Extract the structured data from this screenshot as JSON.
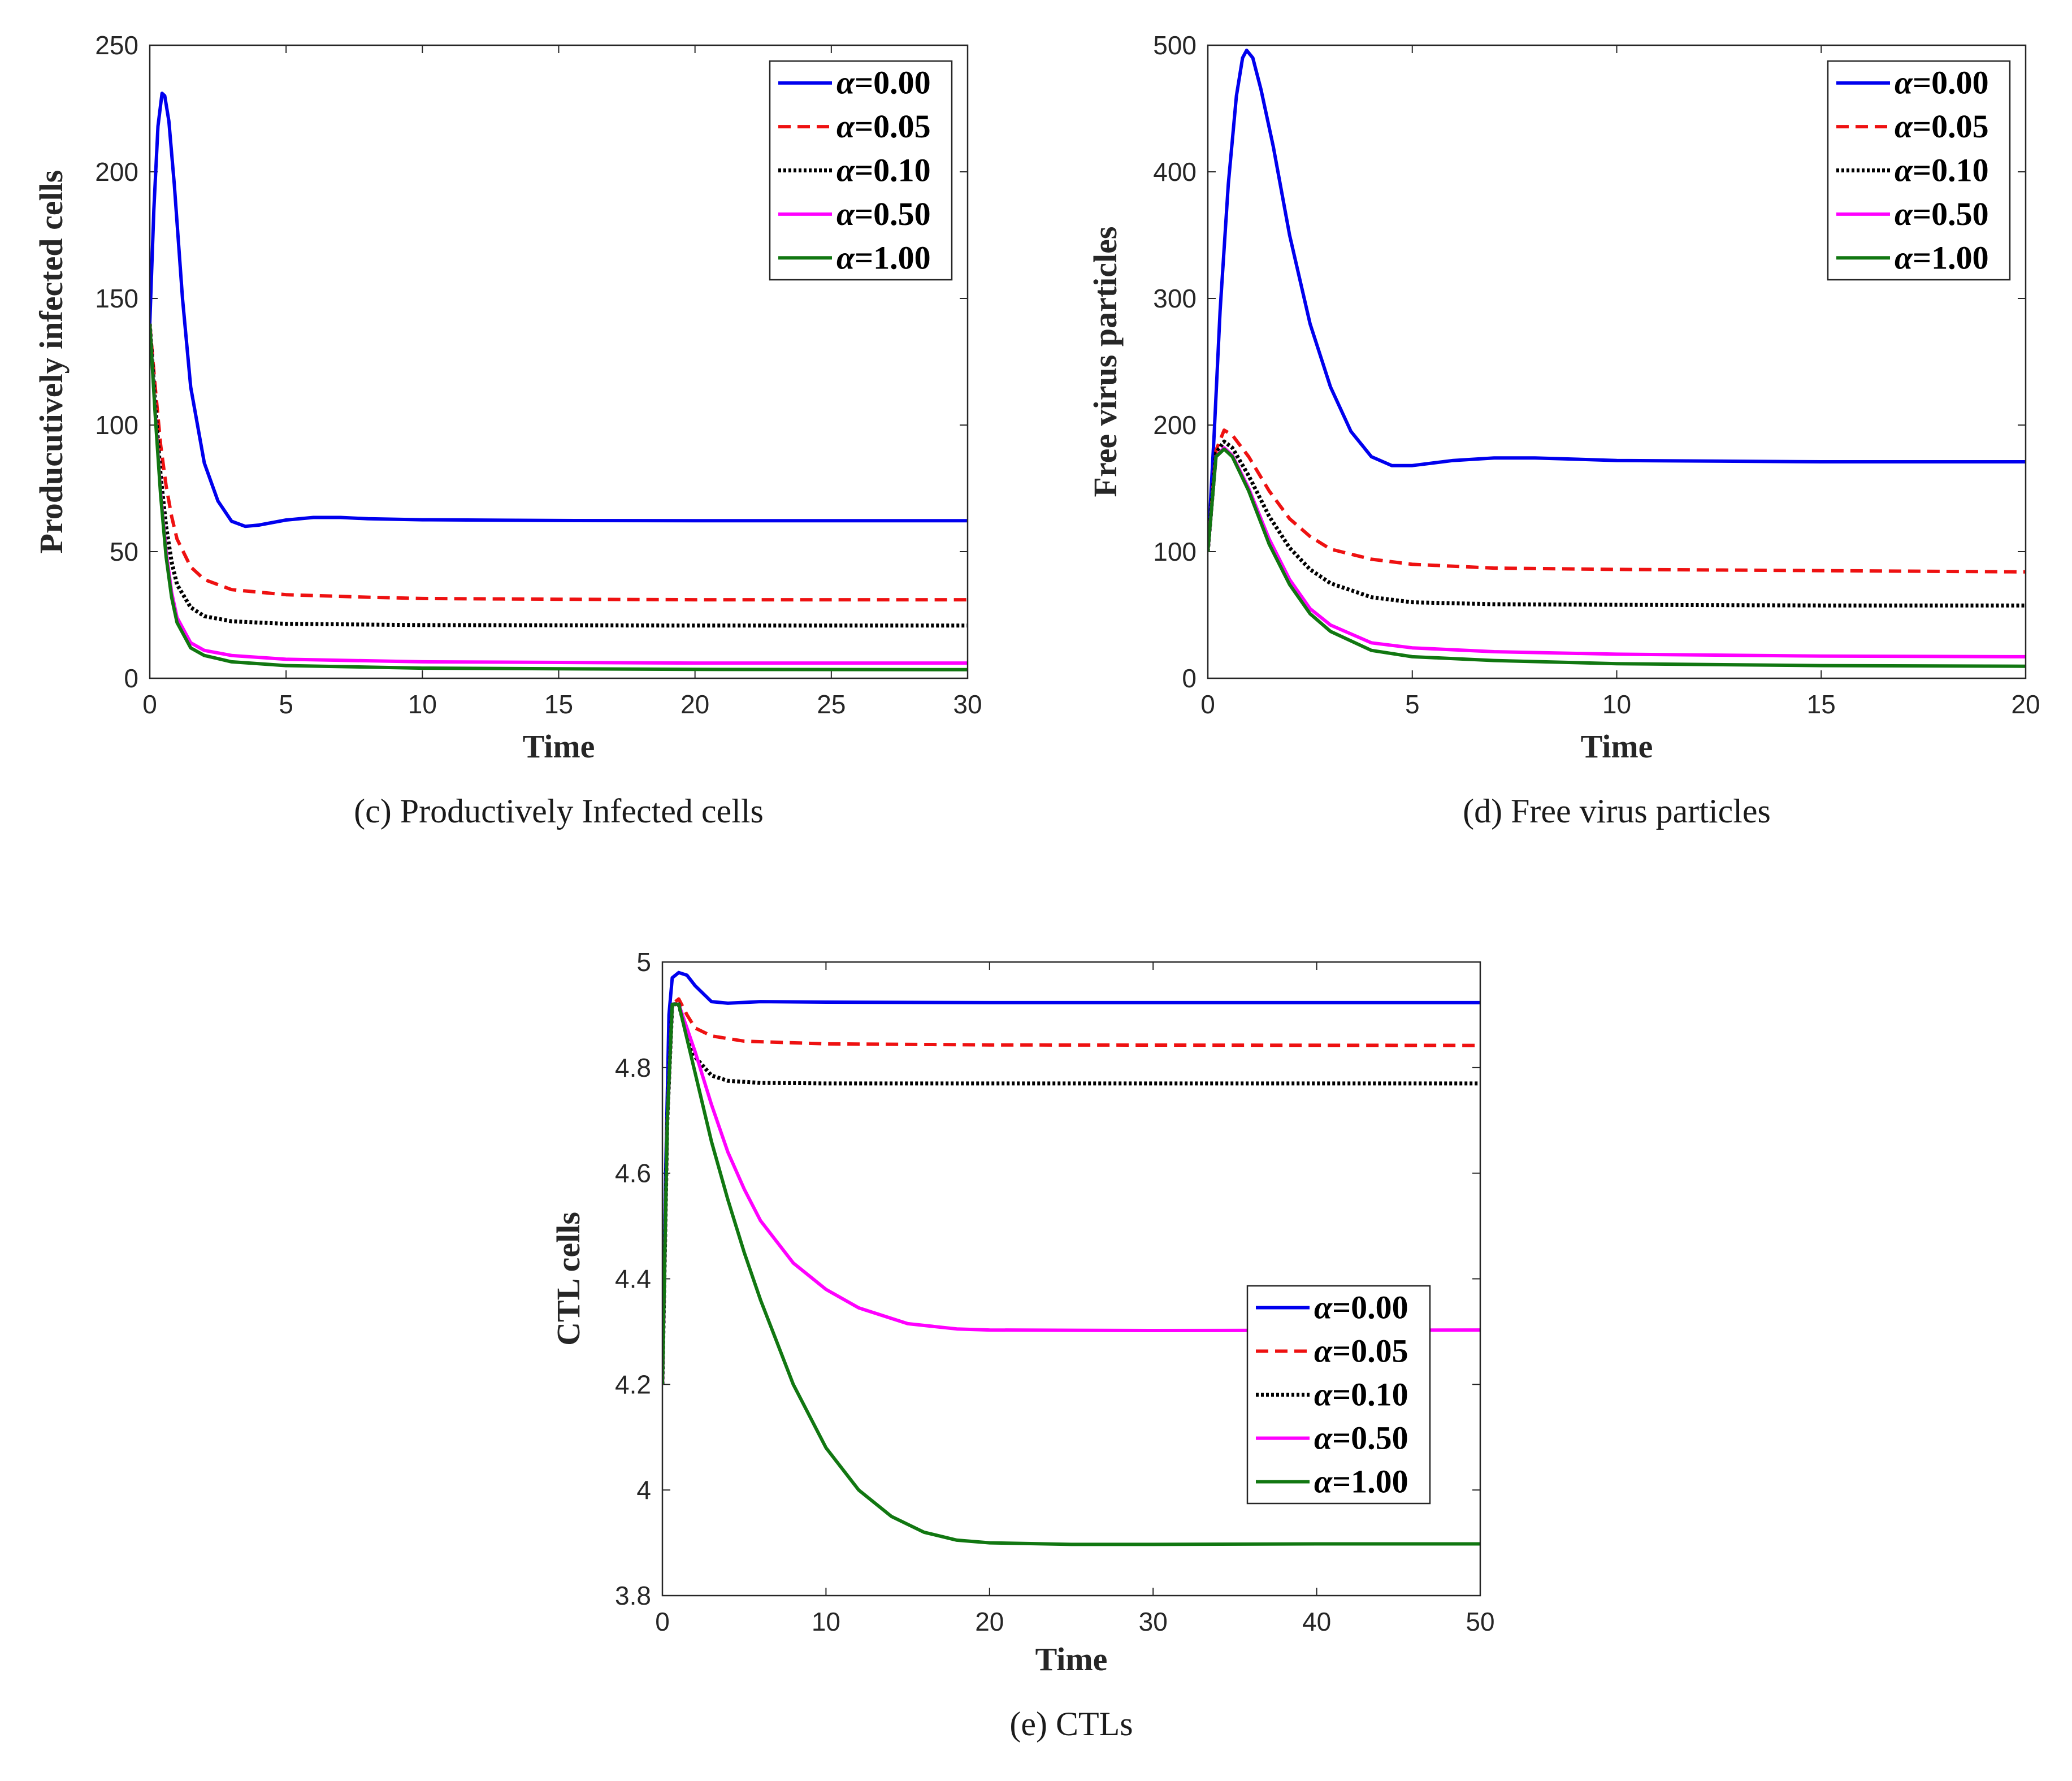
{
  "colors": {
    "alpha_0.00": "#0000ee",
    "alpha_0.05": "#ee1111",
    "alpha_0.10": "#000000",
    "alpha_0.50": "#ff00ff",
    "alpha_1.00": "#117711"
  },
  "chart_data": [
    {
      "type": "line",
      "caption": "(c)  Productively Infected cells",
      "xlabel": "Time",
      "ylabel": "Producutively infected cells",
      "xlim": [
        0,
        30
      ],
      "ylim": [
        0,
        250
      ],
      "xticks": [
        "0",
        "5",
        "10",
        "15",
        "20",
        "25",
        "30"
      ],
      "yticks": [
        "0",
        "50",
        "100",
        "150",
        "200",
        "250"
      ],
      "legend_position": "top-right",
      "series": [
        {
          "name": "α=0.00",
          "greek": "α",
          "value_label": "=0.00",
          "style": "solid",
          "color": "#0000ee",
          "points": [
            [
              0,
              140
            ],
            [
              0.15,
              185
            ],
            [
              0.3,
              218
            ],
            [
              0.45,
              231
            ],
            [
              0.55,
              230
            ],
            [
              0.7,
              220
            ],
            [
              0.9,
              195
            ],
            [
              1.2,
              150
            ],
            [
              1.5,
              115
            ],
            [
              2,
              85
            ],
            [
              2.5,
              70
            ],
            [
              3,
              62
            ],
            [
              3.5,
              60
            ],
            [
              4,
              60.5
            ],
            [
              5,
              62.5
            ],
            [
              6,
              63.5
            ],
            [
              7,
              63.5
            ],
            [
              8,
              63
            ],
            [
              10,
              62.6
            ],
            [
              15,
              62.3
            ],
            [
              20,
              62.2
            ],
            [
              30,
              62.2
            ]
          ]
        },
        {
          "name": "α=0.05",
          "greek": "α",
          "value_label": "=0.05",
          "style": "dashed",
          "color": "#ee1111",
          "points": [
            [
              0,
              140
            ],
            [
              0.2,
              115
            ],
            [
              0.4,
              92
            ],
            [
              0.6,
              76
            ],
            [
              0.8,
              64
            ],
            [
              1,
              55
            ],
            [
              1.5,
              44
            ],
            [
              2,
              39
            ],
            [
              3,
              35
            ],
            [
              5,
              33
            ],
            [
              8,
              32
            ],
            [
              10,
              31.5
            ],
            [
              15,
              31.2
            ],
            [
              20,
              31
            ],
            [
              30,
              31
            ]
          ]
        },
        {
          "name": "α=0.10",
          "greek": "α",
          "value_label": "=0.10",
          "style": "dotted",
          "color": "#000000",
          "points": [
            [
              0,
              140
            ],
            [
              0.2,
              108
            ],
            [
              0.4,
              80
            ],
            [
              0.6,
              60
            ],
            [
              0.8,
              46
            ],
            [
              1,
              37
            ],
            [
              1.5,
              28
            ],
            [
              2,
              24.5
            ],
            [
              3,
              22.5
            ],
            [
              5,
              21.5
            ],
            [
              10,
              21
            ],
            [
              20,
              20.8
            ],
            [
              30,
              20.8
            ]
          ]
        },
        {
          "name": "α=0.50",
          "greek": "α",
          "value_label": "=0.50",
          "style": "solid",
          "color": "#ff00ff",
          "points": [
            [
              0,
              140
            ],
            [
              0.2,
              105
            ],
            [
              0.4,
              73
            ],
            [
              0.6,
              50
            ],
            [
              0.8,
              34
            ],
            [
              1,
              24
            ],
            [
              1.5,
              14
            ],
            [
              2,
              11
            ],
            [
              3,
              9
            ],
            [
              5,
              7.5
            ],
            [
              10,
              6.5
            ],
            [
              20,
              6
            ],
            [
              30,
              6
            ]
          ]
        },
        {
          "name": "α=1.00",
          "greek": "α",
          "value_label": "=1.00",
          "style": "solid",
          "color": "#117711",
          "points": [
            [
              0,
              140
            ],
            [
              0.2,
              104
            ],
            [
              0.4,
              72
            ],
            [
              0.6,
              48
            ],
            [
              0.8,
              32
            ],
            [
              1,
              22
            ],
            [
              1.5,
              12
            ],
            [
              2,
              9
            ],
            [
              3,
              6.5
            ],
            [
              5,
              5
            ],
            [
              10,
              4
            ],
            [
              20,
              3.5
            ],
            [
              30,
              3.4
            ]
          ]
        }
      ]
    },
    {
      "type": "line",
      "caption": "(d)  Free virus particles",
      "xlabel": "Time",
      "ylabel": "Free virus particles",
      "xlim": [
        0,
        20
      ],
      "ylim": [
        0,
        500
      ],
      "xticks": [
        "0",
        "5",
        "10",
        "15",
        "20"
      ],
      "yticks": [
        "0",
        "100",
        "200",
        "300",
        "400",
        "500"
      ],
      "legend_position": "top-right",
      "series": [
        {
          "name": "α=0.00",
          "greek": "α",
          "value_label": "=0.00",
          "style": "solid",
          "color": "#0000ee",
          "points": [
            [
              0,
              100
            ],
            [
              0.15,
              190
            ],
            [
              0.3,
              290
            ],
            [
              0.5,
              390
            ],
            [
              0.7,
              460
            ],
            [
              0.85,
              490
            ],
            [
              0.95,
              496
            ],
            [
              1.1,
              490
            ],
            [
              1.3,
              465
            ],
            [
              1.6,
              420
            ],
            [
              2,
              350
            ],
            [
              2.5,
              280
            ],
            [
              3,
              230
            ],
            [
              3.5,
              195
            ],
            [
              4,
              175
            ],
            [
              4.5,
              168
            ],
            [
              5,
              168
            ],
            [
              6,
              172
            ],
            [
              7,
              174
            ],
            [
              8,
              174
            ],
            [
              10,
              172
            ],
            [
              15,
              171
            ],
            [
              20,
              171
            ]
          ]
        },
        {
          "name": "α=0.05",
          "greek": "α",
          "value_label": "=0.05",
          "style": "dashed",
          "color": "#ee1111",
          "points": [
            [
              0,
              100
            ],
            [
              0.2,
              180
            ],
            [
              0.4,
              196
            ],
            [
              0.6,
              192
            ],
            [
              1,
              175
            ],
            [
              1.5,
              148
            ],
            [
              2,
              126
            ],
            [
              2.5,
              112
            ],
            [
              3,
              102
            ],
            [
              4,
              94
            ],
            [
              5,
              90
            ],
            [
              7,
              87
            ],
            [
              10,
              86
            ],
            [
              15,
              85
            ],
            [
              20,
              84
            ]
          ]
        },
        {
          "name": "α=0.10",
          "greek": "α",
          "value_label": "=0.10",
          "style": "dotted",
          "color": "#000000",
          "points": [
            [
              0,
              100
            ],
            [
              0.2,
              178
            ],
            [
              0.4,
              187
            ],
            [
              0.6,
              182
            ],
            [
              1,
              160
            ],
            [
              1.5,
              128
            ],
            [
              2,
              103
            ],
            [
              2.5,
              86
            ],
            [
              3,
              75
            ],
            [
              4,
              64
            ],
            [
              5,
              60
            ],
            [
              7,
              58.5
            ],
            [
              10,
              58
            ],
            [
              15,
              57.5
            ],
            [
              20,
              57.5
            ]
          ]
        },
        {
          "name": "α=0.50",
          "greek": "α",
          "value_label": "=0.50",
          "style": "solid",
          "color": "#ff00ff",
          "points": [
            [
              0,
              100
            ],
            [
              0.2,
              175
            ],
            [
              0.4,
              182
            ],
            [
              0.6,
              176
            ],
            [
              1,
              150
            ],
            [
              1.5,
              110
            ],
            [
              2,
              78
            ],
            [
              2.5,
              55
            ],
            [
              3,
              42
            ],
            [
              4,
              28
            ],
            [
              5,
              24
            ],
            [
              7,
              21
            ],
            [
              10,
              19
            ],
            [
              15,
              17.5
            ],
            [
              20,
              17
            ]
          ]
        },
        {
          "name": "α=1.00",
          "greek": "α",
          "value_label": "=1.00",
          "style": "solid",
          "color": "#117711",
          "points": [
            [
              0,
              100
            ],
            [
              0.2,
              175
            ],
            [
              0.4,
              181
            ],
            [
              0.6,
              175
            ],
            [
              1,
              148
            ],
            [
              1.5,
              106
            ],
            [
              2,
              74
            ],
            [
              2.5,
              51
            ],
            [
              3,
              37
            ],
            [
              4,
              22
            ],
            [
              5,
              17
            ],
            [
              7,
              14
            ],
            [
              10,
              11.5
            ],
            [
              15,
              10
            ],
            [
              20,
              9.5
            ]
          ]
        }
      ]
    },
    {
      "type": "line",
      "caption": "(e)  CTLs",
      "xlabel": "Time",
      "ylabel": "CTL cells",
      "xlim": [
        0,
        50
      ],
      "ylim": [
        3.8,
        5.0
      ],
      "xticks": [
        "0",
        "10",
        "20",
        "30",
        "40",
        "50"
      ],
      "yticks": [
        "3.8",
        "4",
        "4.2",
        "4.4",
        "4.6",
        "4.8",
        "5"
      ],
      "legend_position": "center-right",
      "series": [
        {
          "name": "α=0.00",
          "greek": "α",
          "value_label": "=0.00",
          "style": "solid",
          "color": "#0000ee",
          "points": [
            [
              0,
              4.2
            ],
            [
              0.2,
              4.6
            ],
            [
              0.4,
              4.9
            ],
            [
              0.6,
              4.97
            ],
            [
              1,
              4.98
            ],
            [
              1.5,
              4.975
            ],
            [
              2,
              4.955
            ],
            [
              3,
              4.925
            ],
            [
              4,
              4.922
            ],
            [
              6,
              4.925
            ],
            [
              10,
              4.924
            ],
            [
              20,
              4.923
            ],
            [
              50,
              4.923
            ]
          ]
        },
        {
          "name": "α=0.05",
          "greek": "α",
          "value_label": "=0.05",
          "style": "dashed",
          "color": "#ee1111",
          "points": [
            [
              0,
              4.2
            ],
            [
              0.3,
              4.7
            ],
            [
              0.6,
              4.92
            ],
            [
              1,
              4.93
            ],
            [
              1.5,
              4.9
            ],
            [
              2,
              4.875
            ],
            [
              3,
              4.86
            ],
            [
              5,
              4.85
            ],
            [
              10,
              4.845
            ],
            [
              20,
              4.843
            ],
            [
              50,
              4.842
            ]
          ]
        },
        {
          "name": "α=0.10",
          "greek": "α",
          "value_label": "=0.10",
          "style": "dotted",
          "color": "#000000",
          "points": [
            [
              0,
              4.2
            ],
            [
              0.3,
              4.7
            ],
            [
              0.6,
              4.92
            ],
            [
              1,
              4.92
            ],
            [
              1.5,
              4.86
            ],
            [
              2,
              4.82
            ],
            [
              3,
              4.785
            ],
            [
              4,
              4.775
            ],
            [
              6,
              4.771
            ],
            [
              10,
              4.77
            ],
            [
              20,
              4.77
            ],
            [
              50,
              4.77
            ]
          ]
        },
        {
          "name": "α=0.50",
          "greek": "α",
          "value_label": "=0.50",
          "style": "solid",
          "color": "#ff00ff",
          "points": [
            [
              0,
              4.2
            ],
            [
              0.3,
              4.7
            ],
            [
              0.6,
              4.92
            ],
            [
              1,
              4.92
            ],
            [
              2,
              4.83
            ],
            [
              3,
              4.73
            ],
            [
              4,
              4.64
            ],
            [
              5,
              4.57
            ],
            [
              6,
              4.51
            ],
            [
              8,
              4.43
            ],
            [
              10,
              4.38
            ],
            [
              12,
              4.345
            ],
            [
              15,
              4.315
            ],
            [
              18,
              4.305
            ],
            [
              20,
              4.303
            ],
            [
              30,
              4.302
            ],
            [
              50,
              4.303
            ]
          ]
        },
        {
          "name": "α=1.00",
          "greek": "α",
          "value_label": "=1.00",
          "style": "solid",
          "color": "#117711",
          "points": [
            [
              0,
              4.2
            ],
            [
              0.3,
              4.7
            ],
            [
              0.6,
              4.92
            ],
            [
              1,
              4.92
            ],
            [
              2,
              4.79
            ],
            [
              3,
              4.66
            ],
            [
              4,
              4.55
            ],
            [
              5,
              4.45
            ],
            [
              6,
              4.36
            ],
            [
              7,
              4.28
            ],
            [
              8,
              4.2
            ],
            [
              10,
              4.08
            ],
            [
              12,
              4.0
            ],
            [
              14,
              3.95
            ],
            [
              16,
              3.92
            ],
            [
              18,
              3.905
            ],
            [
              20,
              3.9
            ],
            [
              25,
              3.897
            ],
            [
              30,
              3.897
            ],
            [
              40,
              3.898
            ],
            [
              50,
              3.898
            ]
          ]
        }
      ]
    }
  ]
}
